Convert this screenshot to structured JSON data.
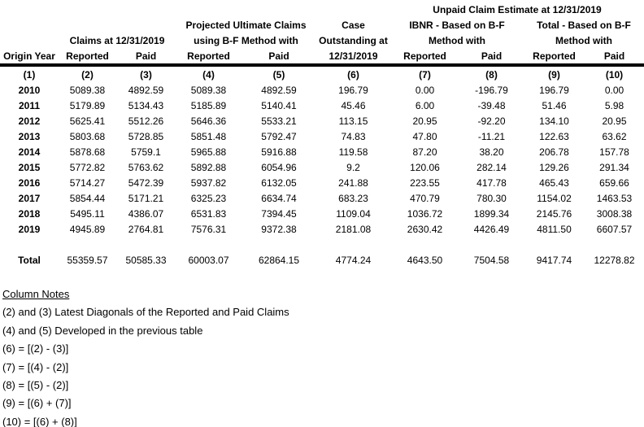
{
  "header": {
    "unpaid_title": "Unpaid Claim Estimate at 12/31/2019",
    "claims_at": "Claims at 12/31/2019",
    "projected_line1": "Projected Ultimate Claims",
    "projected_line2": "using B-F Method with",
    "case_line1": "Case",
    "case_line2": "Outstanding at",
    "case_line3": "12/31/2019",
    "ibnr_line1": "IBNR - Based on B-F",
    "ibnr_line2": "Method with",
    "total_line1": "Total - Based on B-F",
    "total_line2": "Method with",
    "origin_year": "Origin Year",
    "reported": "Reported",
    "paid": "Paid"
  },
  "col_numbers": [
    "(1)",
    "(2)",
    "(3)",
    "(4)",
    "(5)",
    "(6)",
    "(7)",
    "(8)",
    "(9)",
    "(10)"
  ],
  "rows": [
    {
      "year": "2010",
      "values": [
        "5089.38",
        "4892.59",
        "5089.38",
        "4892.59",
        "196.79",
        "0.00",
        "-196.79",
        "196.79",
        "0.00"
      ]
    },
    {
      "year": "2011",
      "values": [
        "5179.89",
        "5134.43",
        "5185.89",
        "5140.41",
        "45.46",
        "6.00",
        "-39.48",
        "51.46",
        "5.98"
      ]
    },
    {
      "year": "2012",
      "values": [
        "5625.41",
        "5512.26",
        "5646.36",
        "5533.21",
        "113.15",
        "20.95",
        "-92.20",
        "134.10",
        "20.95"
      ]
    },
    {
      "year": "2013",
      "values": [
        "5803.68",
        "5728.85",
        "5851.48",
        "5792.47",
        "74.83",
        "47.80",
        "-11.21",
        "122.63",
        "63.62"
      ]
    },
    {
      "year": "2014",
      "values": [
        "5878.68",
        "5759.1",
        "5965.88",
        "5916.88",
        "119.58",
        "87.20",
        "38.20",
        "206.78",
        "157.78"
      ]
    },
    {
      "year": "2015",
      "values": [
        "5772.82",
        "5763.62",
        "5892.88",
        "6054.96",
        "9.2",
        "120.06",
        "282.14",
        "129.26",
        "291.34"
      ]
    },
    {
      "year": "2016",
      "values": [
        "5714.27",
        "5472.39",
        "5937.82",
        "6132.05",
        "241.88",
        "223.55",
        "417.78",
        "465.43",
        "659.66"
      ]
    },
    {
      "year": "2017",
      "values": [
        "5854.44",
        "5171.21",
        "6325.23",
        "6634.74",
        "683.23",
        "470.79",
        "780.30",
        "1154.02",
        "1463.53"
      ]
    },
    {
      "year": "2018",
      "values": [
        "5495.11",
        "4386.07",
        "6531.83",
        "7394.45",
        "1109.04",
        "1036.72",
        "1899.34",
        "2145.76",
        "3008.38"
      ]
    },
    {
      "year": "2019",
      "values": [
        "4945.89",
        "2764.81",
        "7576.31",
        "9372.38",
        "2181.08",
        "2630.42",
        "4426.49",
        "4811.50",
        "6607.57"
      ]
    }
  ],
  "total": {
    "label": "Total",
    "values": [
      "55359.57",
      "50585.33",
      "60003.07",
      "62864.15",
      "4774.24",
      "4643.50",
      "7504.58",
      "9417.74",
      "12278.82"
    ]
  },
  "notes": {
    "title": "Column Notes",
    "lines": [
      "(2) and (3) Latest Diagonals of the Reported and Paid Claims",
      "(4) and (5) Developed in the previous table",
      "(6) = [(2) - (3)]",
      "(7) = [(4) - (2)]",
      "(8) = [(5) - (2)]",
      "(9) = [(6) + (7)]",
      "(10) = [(6) + (8)]"
    ]
  }
}
